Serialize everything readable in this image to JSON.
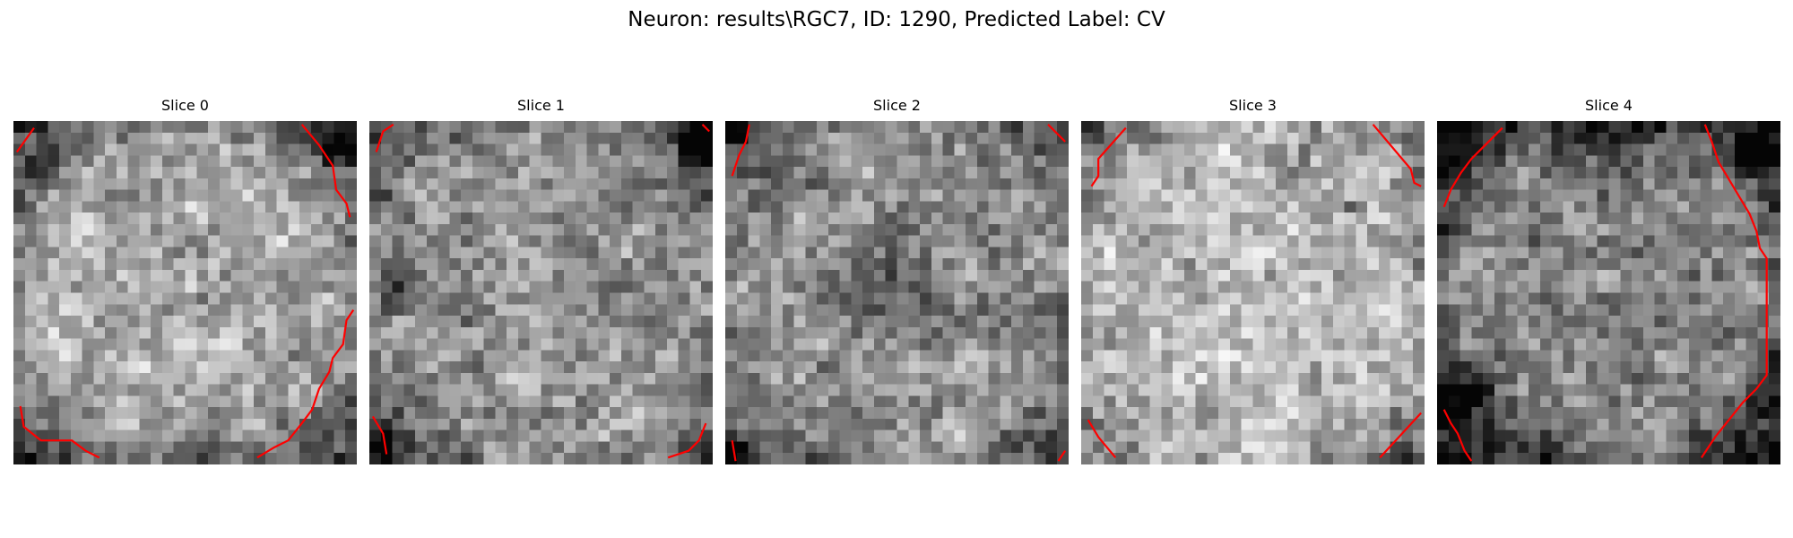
{
  "figure": {
    "title": "Neuron: results\\RGC7, ID: 1290, Predicted Label: CV",
    "contour_color": "#ff0000"
  },
  "slices": [
    {
      "label": "Slice 0",
      "contours": [
        [
          [
            0.01,
            0.09
          ],
          [
            0.06,
            0.02
          ]
        ],
        [
          [
            0.84,
            0.01
          ],
          [
            0.89,
            0.07
          ],
          [
            0.93,
            0.13
          ],
          [
            0.94,
            0.2
          ],
          [
            0.97,
            0.24
          ],
          [
            0.98,
            0.28
          ]
        ],
        [
          [
            0.99,
            0.55
          ],
          [
            0.97,
            0.58
          ],
          [
            0.96,
            0.65
          ],
          [
            0.93,
            0.69
          ],
          [
            0.92,
            0.73
          ],
          [
            0.89,
            0.78
          ],
          [
            0.87,
            0.84
          ],
          [
            0.84,
            0.88
          ],
          [
            0.8,
            0.93
          ],
          [
            0.76,
            0.95
          ],
          [
            0.71,
            0.98
          ]
        ],
        [
          [
            0.02,
            0.83
          ],
          [
            0.03,
            0.89
          ],
          [
            0.08,
            0.93
          ],
          [
            0.17,
            0.93
          ],
          [
            0.21,
            0.96
          ],
          [
            0.25,
            0.98
          ]
        ]
      ]
    },
    {
      "label": "Slice 1",
      "contours": [
        [
          [
            0.02,
            0.09
          ],
          [
            0.04,
            0.03
          ],
          [
            0.07,
            0.01
          ]
        ],
        [
          [
            0.97,
            0.01
          ],
          [
            0.99,
            0.03
          ]
        ],
        [
          [
            0.01,
            0.86
          ],
          [
            0.04,
            0.91
          ],
          [
            0.05,
            0.97
          ]
        ],
        [
          [
            0.87,
            0.98
          ],
          [
            0.93,
            0.96
          ],
          [
            0.96,
            0.93
          ],
          [
            0.98,
            0.88
          ]
        ]
      ]
    },
    {
      "label": "Slice 2",
      "contours": [
        [
          [
            0.02,
            0.16
          ],
          [
            0.04,
            0.1
          ],
          [
            0.06,
            0.06
          ],
          [
            0.07,
            0.01
          ]
        ],
        [
          [
            0.94,
            0.01
          ],
          [
            0.99,
            0.06
          ]
        ],
        [
          [
            0.02,
            0.93
          ],
          [
            0.03,
            0.99
          ]
        ],
        [
          [
            0.97,
            0.99
          ],
          [
            0.99,
            0.96
          ]
        ]
      ]
    },
    {
      "label": "Slice 3",
      "contours": [
        [
          [
            0.03,
            0.19
          ],
          [
            0.05,
            0.16
          ],
          [
            0.05,
            0.11
          ],
          [
            0.13,
            0.02
          ]
        ],
        [
          [
            0.85,
            0.01
          ],
          [
            0.96,
            0.14
          ],
          [
            0.97,
            0.18
          ],
          [
            0.99,
            0.19
          ]
        ],
        [
          [
            0.02,
            0.87
          ],
          [
            0.05,
            0.92
          ],
          [
            0.1,
            0.98
          ]
        ],
        [
          [
            0.87,
            0.98
          ],
          [
            0.99,
            0.85
          ]
        ]
      ]
    },
    {
      "label": "Slice 4",
      "contours": [
        [
          [
            0.02,
            0.25
          ],
          [
            0.04,
            0.2
          ],
          [
            0.07,
            0.15
          ],
          [
            0.1,
            0.11
          ],
          [
            0.14,
            0.07
          ],
          [
            0.19,
            0.02
          ]
        ],
        [
          [
            0.78,
            0.01
          ],
          [
            0.8,
            0.06
          ],
          [
            0.82,
            0.12
          ],
          [
            0.85,
            0.17
          ],
          [
            0.88,
            0.22
          ],
          [
            0.91,
            0.27
          ],
          [
            0.93,
            0.32
          ],
          [
            0.94,
            0.37
          ],
          [
            0.96,
            0.4
          ],
          [
            0.96,
            0.52
          ],
          [
            0.96,
            0.74
          ],
          [
            0.93,
            0.78
          ],
          [
            0.89,
            0.82
          ],
          [
            0.85,
            0.87
          ],
          [
            0.81,
            0.92
          ],
          [
            0.77,
            0.98
          ]
        ],
        [
          [
            0.02,
            0.84
          ],
          [
            0.04,
            0.88
          ],
          [
            0.06,
            0.91
          ],
          [
            0.08,
            0.96
          ],
          [
            0.1,
            0.99
          ]
        ]
      ]
    }
  ]
}
